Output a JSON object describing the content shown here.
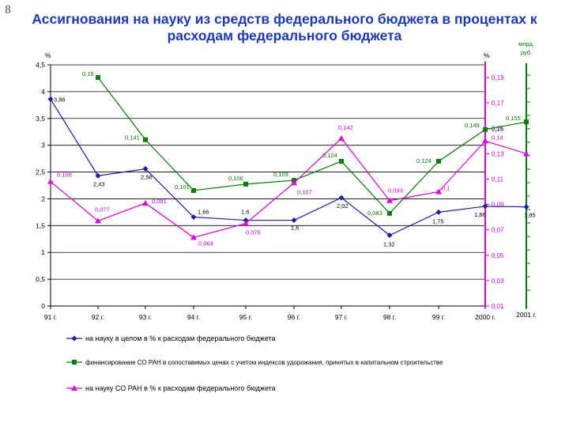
{
  "slide_number": "8",
  "title_line1": "Ассигнования на науку из средств федерального бюджета в процентах к",
  "title_line2": "расходам федерального бюджета",
  "chart_data": {
    "type": "line",
    "categories": [
      "91 г.",
      "92 г.",
      "93 г.",
      "94 г.",
      "95 г.",
      "96 г.",
      "97 г.",
      "98 г.",
      "99 г.",
      "2000 г.",
      "2001 г."
    ],
    "left_axis": {
      "unit": "%",
      "min": 0,
      "max": 4.5,
      "step": 0.5,
      "ticks": [
        "0",
        "0,5",
        "1",
        "1,5",
        "2",
        "2,5",
        "3",
        "3,5",
        "4",
        "4,5"
      ]
    },
    "right_axis": {
      "unit": "%",
      "min": 0.01,
      "max": 0.19,
      "step": 0.02,
      "ticks": [
        "0,01",
        "0,03",
        "0,05",
        "0,07",
        "0,09",
        "0,11",
        "0,13",
        "0,15",
        "0,17",
        "0,19"
      ]
    },
    "right_axis2": {
      "unit_line1": "млрд.",
      "unit_line2": "руб."
    },
    "grid": true,
    "legend_position": "bottom",
    "series": [
      {
        "name": "на науку в целом в % к расходам федерального бюджета",
        "axis": "left",
        "color": "#1c1ca8",
        "marker": "diamond",
        "values": [
          3.86,
          2.43,
          2.56,
          1.66,
          1.6,
          1.6,
          2.02,
          1.32,
          1.75,
          1.86,
          1.85
        ],
        "labels": [
          "3,86",
          "2,43",
          "2,56",
          "1,66",
          "1,6",
          "1,6",
          "2,02",
          "1,32",
          "1,75",
          "1,86",
          "1,85"
        ]
      },
      {
        "name": "финансирование СО РАН в сопоставимых ценах с учетом индексов удорожания, принятых в капитальном строительстве",
        "axis": "right",
        "color": "#008000",
        "marker": "square",
        "values": [
          null,
          0.19,
          0.141,
          0.101,
          0.106,
          0.109,
          0.124,
          0.083,
          0.124,
          0.149,
          0.155
        ],
        "labels": [
          "",
          "0,19",
          "0,141",
          "0,101",
          "0,106",
          "0,109",
          "0,124",
          "0,083",
          "0,124",
          "0,149",
          "0,155"
        ]
      },
      {
        "name": "на науку СО РАН в % к расходам федерального бюджета",
        "axis": "right",
        "color": "#e000e0",
        "marker": "triangle",
        "values": [
          0.108,
          0.077,
          0.091,
          0.064,
          0.075,
          0.107,
          0.142,
          0.093,
          0.1,
          0.14,
          0.13
        ],
        "labels": [
          "0,108",
          "0,077",
          "0,091",
          "0,064",
          "0,075",
          "0,107",
          "0,142",
          "0,093",
          "0,1",
          "0,14",
          ""
        ]
      }
    ],
    "extra_labels": [
      "0,15"
    ]
  }
}
